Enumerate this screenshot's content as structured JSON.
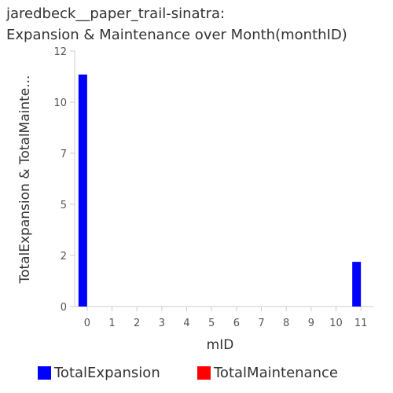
{
  "title": {
    "line1": "jaredbeck__paper_trail-sinatra:",
    "line2": "Expansion & Maintenance over Month(monthID)"
  },
  "chart_data": {
    "type": "bar",
    "categories": [
      "0",
      "1",
      "2",
      "3",
      "4",
      "5",
      "6",
      "7",
      "8",
      "9",
      "10",
      "11"
    ],
    "series": [
      {
        "name": "TotalExpansion",
        "color": "#0000ff",
        "values": [
          10.9,
          0,
          0,
          0,
          0,
          0,
          0,
          0,
          0,
          0,
          0,
          2.1
        ]
      },
      {
        "name": "TotalMaintenance",
        "color": "#ff0000",
        "values": [
          0,
          0,
          0,
          0,
          0,
          0,
          0,
          0,
          0,
          0,
          0,
          0
        ]
      }
    ],
    "xlabel": "mID",
    "ylabel": "TotalExpansion & TotalMainte...",
    "ylim": [
      0,
      12
    ],
    "yticks": [
      "0",
      "2",
      "5",
      "7",
      "10",
      "12"
    ],
    "grid": false,
    "legend_position": "bottom"
  }
}
